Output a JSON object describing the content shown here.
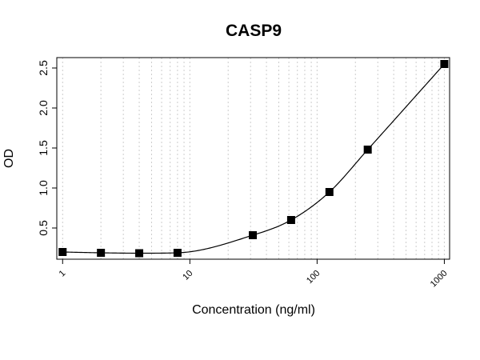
{
  "chart_data": {
    "type": "scatter",
    "title": "CASP9",
    "xlabel": "Concentration (ng/ml)",
    "ylabel": "OD",
    "x_scale": "log",
    "xlim": [
      0.9,
      1100
    ],
    "ylim": [
      0.11,
      2.63
    ],
    "x_tick_labels": [
      "1",
      "10",
      "100",
      "1000"
    ],
    "y_tick_labels": [
      "0.5",
      "1.0",
      "1.5",
      "2.0",
      "2.5"
    ],
    "grid": "vertical dotted at log minor ticks",
    "points": [
      {
        "x": 1,
        "y": 0.2
      },
      {
        "x": 2,
        "y": 0.19
      },
      {
        "x": 4,
        "y": 0.185
      },
      {
        "x": 8,
        "y": 0.19
      },
      {
        "x": 31.25,
        "y": 0.41
      },
      {
        "x": 62.5,
        "y": 0.6
      },
      {
        "x": 125,
        "y": 0.95
      },
      {
        "x": 250,
        "y": 1.48
      },
      {
        "x": 1000,
        "y": 2.55
      }
    ],
    "fit": "smooth four-parameter logistic curve through points",
    "colors": {
      "points": "#000000",
      "curve": "#000000",
      "grid": "#cccccc"
    }
  }
}
